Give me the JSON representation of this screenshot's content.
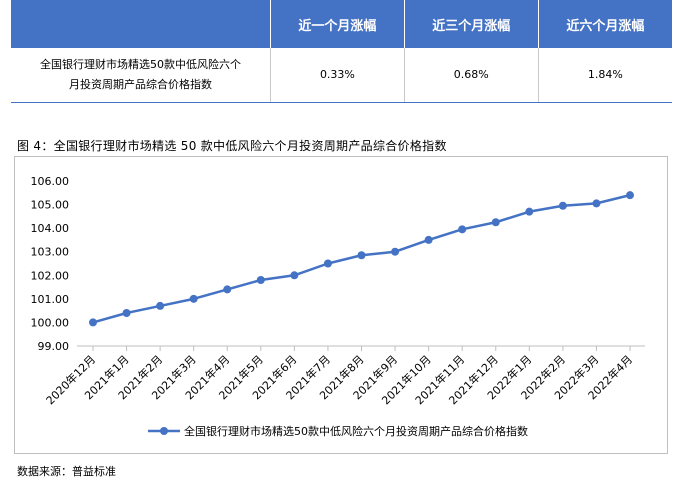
{
  "table": {
    "headers": [
      "",
      "近一个月涨幅",
      "近三个月涨幅",
      "近六个月涨幅"
    ],
    "row": {
      "label_lines": [
        "全国银行理财市场精选50款中低风险六个",
        "月投资周期产品综合价格指数"
      ],
      "values": [
        "0.33%",
        "0.68%",
        "1.84%"
      ]
    }
  },
  "caption": "图 4：全国银行理财市场精选 50 款中低风险六个月投资周期产品综合价格指数",
  "source": "数据来源：普益标准",
  "colors": {
    "series": "#4472c4",
    "header_bg": "#4472c4"
  },
  "chart_data": {
    "type": "line",
    "categories": [
      "2020年12月",
      "2021年1月",
      "2021年2月",
      "2021年3月",
      "2021年4月",
      "2021年5月",
      "2021年6月",
      "2021年7月",
      "2021年8月",
      "2021年9月",
      "2021年10月",
      "2021年11月",
      "2021年12月",
      "2022年1月",
      "2022年2月",
      "2022年3月",
      "2022年4月"
    ],
    "series": [
      {
        "name": "全国银行理财市场精选50款中低风险六个月投资周期产品综合价格指数",
        "values": [
          100.0,
          100.4,
          100.7,
          101.0,
          101.4,
          101.8,
          102.0,
          102.5,
          102.85,
          103.0,
          103.5,
          103.95,
          104.25,
          104.7,
          104.95,
          105.05,
          105.4
        ]
      }
    ],
    "ylim": [
      99.0,
      106.0
    ],
    "yticks": [
      "99.00",
      "100.00",
      "101.00",
      "102.00",
      "103.00",
      "104.00",
      "105.00",
      "106.00"
    ],
    "grid": false,
    "legend": "bottom"
  }
}
